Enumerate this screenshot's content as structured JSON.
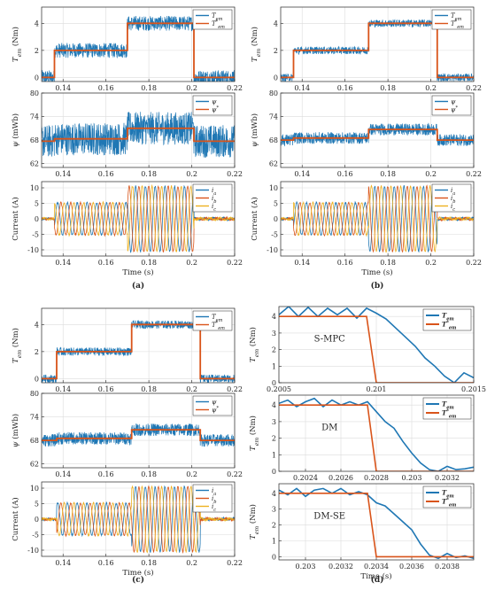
{
  "colors": {
    "measured": "#1f77b4",
    "reference": "#d9541a",
    "phase_a": "#1f77b4",
    "phase_b": "#d9541a",
    "phase_c": "#edb120"
  },
  "panel_labels": [
    "(a)",
    "(b)",
    "(c)",
    "(d)"
  ],
  "chart_data": [
    {
      "panel": "(a)",
      "type": "line",
      "ylabel": "T_em (Nm)",
      "xlim": [
        0.13,
        0.22
      ],
      "ylim": [
        -0.3,
        5.2
      ],
      "xticks": [
        "0.14",
        "0.16",
        "0.18",
        "0.2",
        "0.22"
      ],
      "yticks": [
        "0",
        "2",
        "4"
      ],
      "series": [
        {
          "name": "T_em",
          "noise": 0.55
        },
        {
          "name": "T*_em",
          "steps": [
            [
              0.13,
              0
            ],
            [
              0.136,
              2
            ],
            [
              0.17,
              4
            ],
            [
              0.201,
              0
            ],
            [
              0.22,
              0
            ]
          ]
        }
      ]
    },
    {
      "panel": "(a)",
      "type": "line",
      "ylabel": "ψ (mWb)",
      "xlim": [
        0.13,
        0.22
      ],
      "ylim": [
        61,
        80
      ],
      "xticks": [
        "0.14",
        "0.16",
        "0.18",
        "0.2",
        "0.22"
      ],
      "yticks": [
        "62",
        "68",
        "74",
        "80"
      ],
      "series": [
        {
          "name": "ψ",
          "noise": 4.2
        },
        {
          "name": "ψ*",
          "steps": [
            [
              0.13,
              67.7
            ],
            [
              0.136,
              68.3
            ],
            [
              0.17,
              71
            ],
            [
              0.201,
              67.7
            ],
            [
              0.22,
              67.7
            ]
          ]
        }
      ]
    },
    {
      "panel": "(a)",
      "type": "line",
      "ylabel": "Current (A)",
      "xlabel": "Time (s)",
      "xlim": [
        0.13,
        0.22
      ],
      "ylim": [
        -12,
        12
      ],
      "xticks": [
        "0.14",
        "0.16",
        "0.18",
        "0.2",
        "0.22"
      ],
      "yticks": [
        "-10",
        "-5",
        "0",
        "5",
        "10"
      ],
      "series": [
        {
          "name": "i_a"
        },
        {
          "name": "i_b"
        },
        {
          "name": "i_c"
        }
      ],
      "phase_amplitude_steps": [
        [
          0.13,
          0.2
        ],
        [
          0.136,
          5.2
        ],
        [
          0.17,
          10.5
        ],
        [
          0.201,
          0.3
        ],
        [
          0.22,
          0.3
        ]
      ],
      "frequency_hz": 220
    },
    {
      "panel": "(b)",
      "type": "line",
      "ylabel": "T_em (Nm)",
      "xlim": [
        0.13,
        0.22
      ],
      "ylim": [
        -0.3,
        5.2
      ],
      "xticks": [
        "0.14",
        "0.16",
        "0.18",
        "0.2",
        "0.22"
      ],
      "yticks": [
        "0",
        "2",
        "4"
      ],
      "series": [
        {
          "name": "T_em",
          "noise": 0.28
        },
        {
          "name": "T*_em",
          "steps": [
            [
              0.13,
              0
            ],
            [
              0.136,
              2
            ],
            [
              0.171,
              4
            ],
            [
              0.203,
              0
            ],
            [
              0.22,
              0
            ]
          ]
        }
      ]
    },
    {
      "panel": "(b)",
      "type": "line",
      "ylabel": "ψ (mWb)",
      "xlim": [
        0.13,
        0.22
      ],
      "ylim": [
        61,
        80
      ],
      "xticks": [
        "0.14",
        "0.16",
        "0.18",
        "0.2",
        "0.22"
      ],
      "yticks": [
        "62",
        "68",
        "74",
        "80"
      ],
      "series": [
        {
          "name": "ψ",
          "noise": 1.5
        },
        {
          "name": "ψ*",
          "steps": [
            [
              0.13,
              68
            ],
            [
              0.136,
              68.5
            ],
            [
              0.171,
              70.7
            ],
            [
              0.203,
              68
            ],
            [
              0.22,
              68
            ]
          ]
        }
      ]
    },
    {
      "panel": "(b)",
      "type": "line",
      "ylabel": "Current (A)",
      "xlabel": "Time (s)",
      "xlim": [
        0.13,
        0.22
      ],
      "ylim": [
        -12,
        12
      ],
      "xticks": [
        "0.14",
        "0.16",
        "0.18",
        "0.2",
        "0.22"
      ],
      "yticks": [
        "-10",
        "-5",
        "0",
        "5",
        "10"
      ],
      "series": [
        {
          "name": "i_a"
        },
        {
          "name": "i_b"
        },
        {
          "name": "i_c"
        }
      ],
      "phase_amplitude_steps": [
        [
          0.13,
          0.2
        ],
        [
          0.136,
          5.2
        ],
        [
          0.171,
          10.5
        ],
        [
          0.203,
          0.3
        ],
        [
          0.22,
          0.3
        ]
      ],
      "frequency_hz": 220
    },
    {
      "panel": "(c)",
      "type": "line",
      "ylabel": "T_em (Nm)",
      "xlim": [
        0.13,
        0.22
      ],
      "ylim": [
        -0.3,
        5.2
      ],
      "xticks": [
        "0.14",
        "0.16",
        "0.18",
        "0.2",
        "0.22"
      ],
      "yticks": [
        "0",
        "2",
        "4"
      ],
      "series": [
        {
          "name": "T_em",
          "noise": 0.3
        },
        {
          "name": "T*_em",
          "steps": [
            [
              0.13,
              0
            ],
            [
              0.137,
              2
            ],
            [
              0.172,
              4
            ],
            [
              0.204,
              0
            ],
            [
              0.22,
              0
            ]
          ]
        }
      ]
    },
    {
      "panel": "(c)",
      "type": "line",
      "ylabel": "ψ (mWb)",
      "xlim": [
        0.13,
        0.22
      ],
      "ylim": [
        61,
        80
      ],
      "xticks": [
        "0.14",
        "0.16",
        "0.18",
        "0.2",
        "0.22"
      ],
      "yticks": [
        "62",
        "68",
        "74",
        "80"
      ],
      "series": [
        {
          "name": "ψ",
          "noise": 1.6
        },
        {
          "name": "ψ*",
          "steps": [
            [
              0.13,
              68
            ],
            [
              0.137,
              68.5
            ],
            [
              0.172,
              70.7
            ],
            [
              0.204,
              68
            ],
            [
              0.22,
              68
            ]
          ]
        }
      ]
    },
    {
      "panel": "(c)",
      "type": "line",
      "ylabel": "Current (A)",
      "xlabel": "Time (s)",
      "xlim": [
        0.13,
        0.22
      ],
      "ylim": [
        -12,
        12
      ],
      "xticks": [
        "0.14",
        "0.16",
        "0.18",
        "0.2",
        "0.22"
      ],
      "yticks": [
        "-10",
        "-5",
        "0",
        "5",
        "10"
      ],
      "series": [
        {
          "name": "i_a"
        },
        {
          "name": "i_b"
        },
        {
          "name": "i_c"
        }
      ],
      "phase_amplitude_steps": [
        [
          0.13,
          0.2
        ],
        [
          0.137,
          5.2
        ],
        [
          0.172,
          10.5
        ],
        [
          0.204,
          0.3
        ],
        [
          0.22,
          0.3
        ]
      ],
      "frequency_hz": 220
    },
    {
      "panel": "(d)",
      "type": "line",
      "annotation": "S-MPC",
      "ylabel": "T_em (Nm)",
      "xlim": [
        0.2005,
        0.2015
      ],
      "ylim": [
        0,
        4.6
      ],
      "xticks": [
        "0.2005",
        "0.201",
        "0.2015"
      ],
      "yticks": [
        "0",
        "1",
        "2",
        "3",
        "4"
      ],
      "series": [
        {
          "name": "T_em",
          "x": [
            0.2005,
            0.20055,
            0.2006,
            0.20065,
            0.2007,
            0.20075,
            0.2008,
            0.20085,
            0.2009,
            0.20095,
            0.201,
            0.20105,
            0.2011,
            0.20115,
            0.2012,
            0.20125,
            0.2013,
            0.20135,
            0.2014,
            0.20145,
            0.2015
          ],
          "y": [
            4.1,
            4.6,
            4.0,
            4.55,
            4.0,
            4.5,
            4.1,
            4.5,
            3.9,
            4.5,
            4.2,
            3.85,
            3.3,
            2.75,
            2.2,
            1.5,
            1.0,
            0.4,
            0.0,
            0.6,
            0.3
          ]
        },
        {
          "name": "T*_em",
          "x": [
            0.2005,
            0.20095,
            0.201,
            0.2015
          ],
          "y": [
            4,
            4,
            0,
            0
          ]
        }
      ]
    },
    {
      "panel": "(d)",
      "type": "line",
      "annotation": "DM",
      "ylabel": "T_em (Nm)",
      "xlim": [
        0.20225,
        0.20335
      ],
      "ylim": [
        0,
        4.6
      ],
      "xticks": [
        "0.2024",
        "0.2026",
        "0.2028",
        "0.203",
        "0.2032"
      ],
      "yticks": [
        "0",
        "1",
        "2",
        "3",
        "4"
      ],
      "series": [
        {
          "name": "T_em",
          "x": [
            0.20225,
            0.2023,
            0.20235,
            0.2024,
            0.20245,
            0.2025,
            0.20255,
            0.2026,
            0.20265,
            0.2027,
            0.20275,
            0.2028,
            0.20285,
            0.2029,
            0.20295,
            0.203,
            0.20305,
            0.2031,
            0.20315,
            0.2032,
            0.20325,
            0.2033,
            0.20335
          ],
          "y": [
            4.1,
            4.3,
            3.9,
            4.2,
            4.4,
            3.9,
            4.3,
            4.0,
            4.2,
            4.0,
            4.2,
            3.6,
            3.0,
            2.6,
            1.8,
            1.1,
            0.5,
            0.1,
            0.0,
            0.3,
            0.1,
            0.15,
            0.25
          ]
        },
        {
          "name": "T*_em",
          "x": [
            0.20225,
            0.20275,
            0.2028,
            0.20335
          ],
          "y": [
            4,
            4,
            0,
            0
          ]
        }
      ]
    },
    {
      "panel": "(d)",
      "type": "line",
      "annotation": "DM-SE",
      "ylabel": "T_em (Nm)",
      "xlabel": "Time (s)",
      "xlim": [
        0.20285,
        0.20395
      ],
      "ylim": [
        -0.2,
        4.6
      ],
      "xticks": [
        "0.203",
        "0.2032",
        "0.2034",
        "0.2036",
        "0.2038"
      ],
      "yticks": [
        "0",
        "1",
        "2",
        "3",
        "4"
      ],
      "series": [
        {
          "name": "T_em",
          "x": [
            0.20285,
            0.2029,
            0.20295,
            0.203,
            0.20305,
            0.2031,
            0.20315,
            0.2032,
            0.20325,
            0.2033,
            0.20335,
            0.2034,
            0.20345,
            0.2035,
            0.20355,
            0.2036,
            0.20365,
            0.2037,
            0.20375,
            0.2038,
            0.20385,
            0.2039,
            0.20395
          ],
          "y": [
            4.2,
            3.9,
            4.3,
            3.8,
            4.2,
            4.3,
            4.0,
            4.3,
            3.9,
            4.1,
            3.9,
            3.4,
            3.2,
            2.7,
            2.2,
            1.7,
            0.8,
            0.1,
            -0.1,
            0.2,
            -0.05,
            0.05,
            -0.1
          ]
        },
        {
          "name": "T*_em",
          "x": [
            0.20285,
            0.20335,
            0.2034,
            0.20395
          ],
          "y": [
            4,
            4,
            0,
            0
          ]
        }
      ]
    }
  ]
}
